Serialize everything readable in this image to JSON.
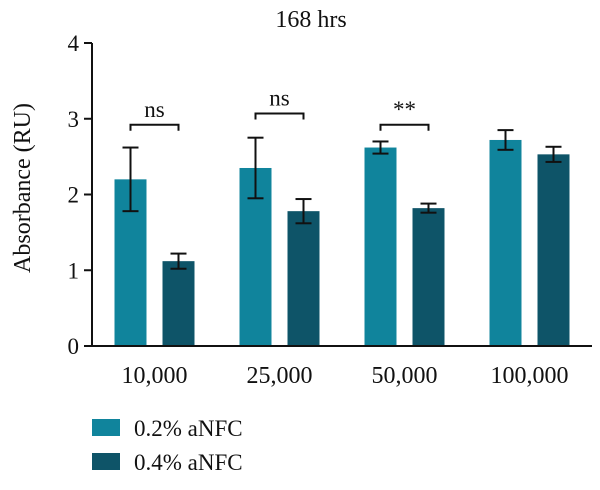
{
  "chart_data": {
    "type": "bar",
    "title": "168 hrs",
    "xlabel": "",
    "ylabel": "Absorbance (RU)",
    "ylim": [
      0,
      4
    ],
    "yticks": [
      0,
      1,
      2,
      3,
      4
    ],
    "grid": false,
    "legend_position": "bottom-left",
    "categories": [
      "10,000",
      "25,000",
      "50,000",
      "100,000"
    ],
    "series": [
      {
        "name": "0.2% aNFC",
        "color": "#10849c",
        "values": [
          2.2,
          2.35,
          2.62,
          2.72
        ],
        "errors": [
          0.42,
          0.4,
          0.08,
          0.13
        ]
      },
      {
        "name": "0.4% aNFC",
        "color": "#0e5468",
        "values": [
          1.12,
          1.78,
          1.82,
          2.53
        ],
        "errors": [
          0.1,
          0.16,
          0.06,
          0.1
        ]
      }
    ],
    "annotations": [
      {
        "category": "10,000",
        "label": "ns",
        "y": 2.92
      },
      {
        "category": "25,000",
        "label": "ns",
        "y": 3.07
      },
      {
        "category": "50,000",
        "label": "**",
        "y": 2.92
      }
    ]
  }
}
